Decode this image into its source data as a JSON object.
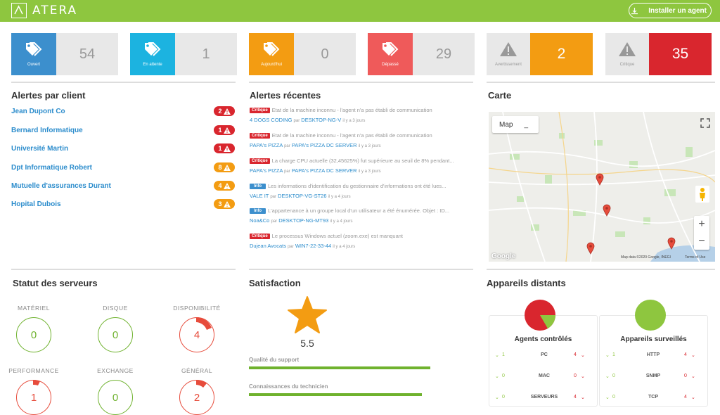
{
  "header": {
    "brand": "ATERA",
    "install_label": "Installer un agent"
  },
  "tiles": [
    {
      "label": "Ouvert",
      "value": "54",
      "icon": "tag-icon",
      "color": "#3c8fcd"
    },
    {
      "label": "En attente",
      "value": "1",
      "icon": "tag-icon",
      "color": "#1cb3e0"
    },
    {
      "label": "Aujourd'hui",
      "value": "0",
      "icon": "tag-icon",
      "color": "#f39c12"
    },
    {
      "label": "Dépassé",
      "value": "29",
      "icon": "tag-icon",
      "color": "#ef5a5a"
    },
    {
      "label": "Avertissement",
      "value": "2",
      "icon": "warning-icon",
      "color": "#f39c12"
    },
    {
      "label": "Critique",
      "value": "35",
      "icon": "warning-icon",
      "color": "#d9262e"
    }
  ],
  "alerts_by_client": {
    "title": "Alertes par client",
    "items": [
      {
        "name": "Jean Dupont Co",
        "count": "2",
        "color": "#d9262e"
      },
      {
        "name": "Bernard Informatique",
        "count": "1",
        "color": "#d9262e"
      },
      {
        "name": "Université Martin",
        "count": "1",
        "color": "#d9262e"
      },
      {
        "name": "Dpt Informatique Robert",
        "count": "8",
        "color": "#f39c12"
      },
      {
        "name": "Mutuelle d'assurances Durant",
        "count": "4",
        "color": "#f39c12"
      },
      {
        "name": "Hopital Dubois",
        "count": "3",
        "color": "#f39c12"
      }
    ]
  },
  "recent_alerts": {
    "title": "Alertes récentes",
    "items": [
      {
        "tag": "Critique",
        "level": "crit",
        "message": "Etat de la machine inconnu - l'agent n'a pas établi de communication",
        "customer": "4 DOGS CODING",
        "par": "par",
        "device": "DESKTOP-NG-V",
        "time": "il y a 3 jours"
      },
      {
        "tag": "Critique",
        "level": "crit",
        "message": "Etat de la machine inconnu - l'agent n'a pas établi de communication",
        "customer": "PAPA's PIZZA",
        "par": "par",
        "device": "PAPA's PIZZA DC SERVER",
        "time": "il y a 3 jours"
      },
      {
        "tag": "Critique",
        "level": "crit",
        "message": "La charge CPU actuelle (32,45625%) fut supérieure au seuil de 8% pendant...",
        "customer": "PAPA's PIZZA",
        "par": "par",
        "device": "PAPA's PIZZA DC SERVER",
        "time": "il y a 3 jours"
      },
      {
        "tag": "Info",
        "level": "info",
        "message": "Les informations d'identification du gestionnaire d'informations ont été lues...",
        "customer": "VALE IT",
        "par": "par",
        "device": "DESKTOP-VG-ST26",
        "time": "il y a 4 jours"
      },
      {
        "tag": "Info",
        "level": "info",
        "message": "L'appartenance à un groupe local d'un utilisateur a été énumérée. Objet : ID...",
        "customer": "Noa&Co",
        "par": "par",
        "device": "DESKTOP-NG-MT93",
        "time": "il y a 4 jours"
      },
      {
        "tag": "Critique",
        "level": "crit",
        "message": "Le processus Windows actuel (zoom.exe) est manquant",
        "customer": "Dujean Avocats",
        "par": "par",
        "device": "WIN7-22-33-44",
        "time": "il y a 4 jours"
      }
    ]
  },
  "map": {
    "title": "Carte",
    "type_label": "Map",
    "minus_label": "_",
    "zoom_in": "+",
    "zoom_out": "−",
    "attribution": "Map data ©2020 Google, INEGI",
    "terms": "Terms of Use",
    "google": "Google"
  },
  "server_status": {
    "title": "Statut des serveurs",
    "items": [
      {
        "label": "MATÉRIEL",
        "value": "0",
        "state": "ok"
      },
      {
        "label": "DISQUE",
        "value": "0",
        "state": "ok"
      },
      {
        "label": "DISPONIBILITÉ",
        "value": "4",
        "state": "bad"
      },
      {
        "label": "PERFORMANCE",
        "value": "1",
        "state": "bad"
      },
      {
        "label": "EXCHANGE",
        "value": "0",
        "state": "ok"
      },
      {
        "label": "GÉNÉRAL",
        "value": "2",
        "state": "bad"
      }
    ]
  },
  "satisfaction": {
    "title": "Satisfaction",
    "score": "5.5",
    "bars": [
      {
        "label": "Qualité du support",
        "fraction": 0.86
      },
      {
        "label": "Connaissances du technicien",
        "fraction": 0.82
      }
    ]
  },
  "remote_devices": {
    "title": "Appareils distants",
    "agents": {
      "title": "Agents contrôlés",
      "rows": [
        {
          "ok": "1",
          "name": "PC",
          "bad": "4"
        },
        {
          "ok": "0",
          "name": "MAC",
          "bad": "0"
        },
        {
          "ok": "0",
          "name": "SERVEURS",
          "bad": "4"
        }
      ]
    },
    "monitored": {
      "title": "Appareils surveillés",
      "rows": [
        {
          "ok": "1",
          "name": "HTTP",
          "bad": "4"
        },
        {
          "ok": "0",
          "name": "SNMP",
          "bad": "0"
        },
        {
          "ok": "0",
          "name": "TCP",
          "bad": "4"
        }
      ]
    }
  }
}
